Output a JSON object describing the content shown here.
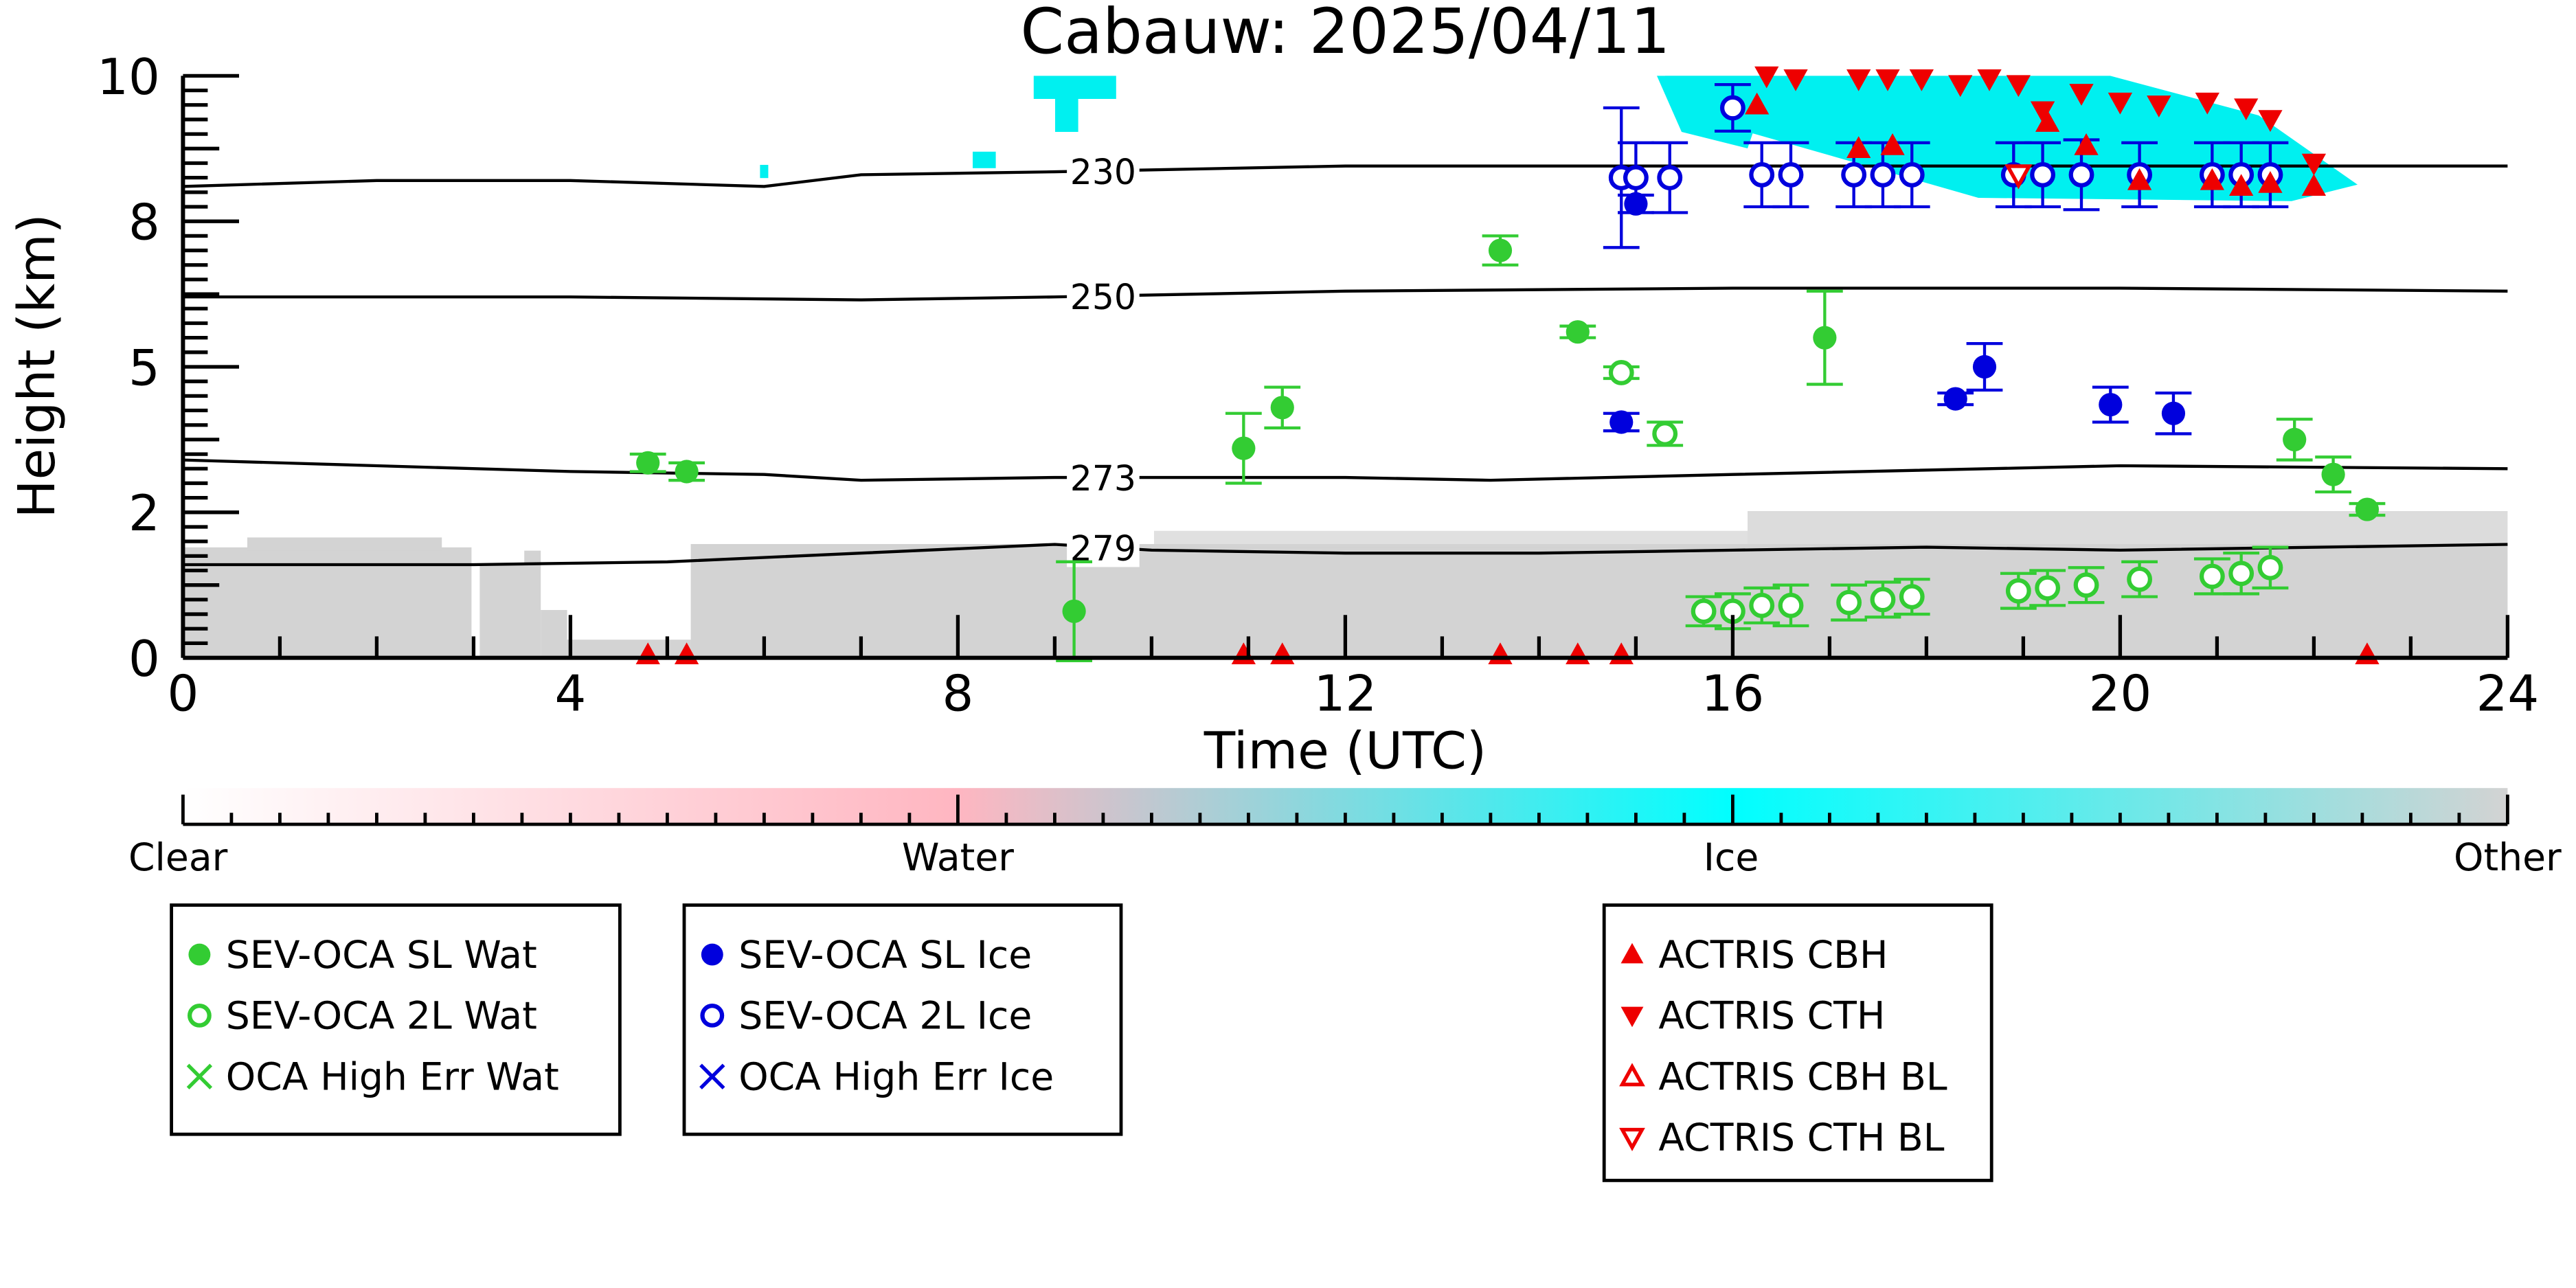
{
  "chart_data": {
    "type": "scatter",
    "title": "Cabauw: 2025/04/11",
    "xlabel": "Time (UTC)",
    "ylabel": "Height (km)",
    "xlim": [
      0,
      24
    ],
    "ylim": [
      0,
      10
    ],
    "x_ticks": [
      0,
      4,
      8,
      12,
      16,
      20,
      24
    ],
    "x_tick_labels": [
      "0",
      "4",
      "8",
      "12",
      "16",
      "20",
      "24"
    ],
    "y_ticks": [
      0,
      2.5,
      5,
      7.5,
      10
    ],
    "y_tick_labels": [
      "0",
      "2",
      "5",
      "8",
      "10"
    ],
    "temperature_contours": [
      {
        "label": "230",
        "points": [
          [
            0,
            8.1
          ],
          [
            2,
            8.2
          ],
          [
            4,
            8.2
          ],
          [
            6,
            8.1
          ],
          [
            7,
            8.3
          ],
          [
            9,
            8.35
          ],
          [
            12,
            8.45
          ],
          [
            16,
            8.45
          ],
          [
            20,
            8.45
          ],
          [
            24,
            8.45
          ]
        ]
      },
      {
        "label": "250",
        "points": [
          [
            0,
            6.2
          ],
          [
            4,
            6.2
          ],
          [
            7,
            6.15
          ],
          [
            9,
            6.2
          ],
          [
            12,
            6.3
          ],
          [
            16,
            6.35
          ],
          [
            20,
            6.35
          ],
          [
            24,
            6.3
          ]
        ]
      },
      {
        "label": "273",
        "points": [
          [
            0,
            3.4
          ],
          [
            2,
            3.3
          ],
          [
            4,
            3.2
          ],
          [
            6,
            3.15
          ],
          [
            7,
            3.05
          ],
          [
            9,
            3.1
          ],
          [
            12,
            3.1
          ],
          [
            13.5,
            3.05
          ],
          [
            16,
            3.15
          ],
          [
            20,
            3.3
          ],
          [
            24,
            3.25
          ]
        ]
      },
      {
        "label": "279",
        "points": [
          [
            0,
            1.6
          ],
          [
            3,
            1.6
          ],
          [
            5,
            1.65
          ],
          [
            7,
            1.8
          ],
          [
            9,
            1.95
          ],
          [
            10,
            1.85
          ],
          [
            12,
            1.8
          ],
          [
            14,
            1.8
          ],
          [
            16,
            1.85
          ],
          [
            18,
            1.9
          ],
          [
            20,
            1.85
          ],
          [
            24,
            1.95
          ]
        ]
      }
    ],
    "series": [
      {
        "name": "SEV-OCA SL Wat",
        "marker": "filled-circle",
        "color": "#33cc33",
        "points": [
          [
            4.8,
            3.35,
            0.15
          ],
          [
            5.2,
            3.2,
            0.15
          ],
          [
            9.2,
            0.8,
            0.85
          ],
          [
            10.95,
            3.6,
            0.6
          ],
          [
            11.35,
            4.3,
            0.35
          ],
          [
            13.6,
            7.0,
            0.25
          ],
          [
            14.4,
            5.6,
            0.1
          ],
          [
            16.95,
            5.5,
            0.8
          ],
          [
            21.8,
            3.75,
            0.35
          ],
          [
            22.2,
            3.15,
            0.3
          ],
          [
            22.55,
            2.55,
            0.1
          ]
        ]
      },
      {
        "name": "SEV-OCA 2L Wat",
        "marker": "open-circle",
        "color": "#33cc33",
        "points": [
          [
            14.85,
            4.9,
            0.1
          ],
          [
            15.3,
            3.85,
            0.2
          ],
          [
            15.7,
            0.8,
            0.25
          ],
          [
            16.0,
            0.8,
            0.3
          ],
          [
            16.3,
            0.9,
            0.3
          ],
          [
            16.6,
            0.9,
            0.35
          ],
          [
            17.2,
            0.95,
            0.3
          ],
          [
            17.55,
            1.0,
            0.3
          ],
          [
            17.85,
            1.05,
            0.3
          ],
          [
            18.95,
            1.15,
            0.3
          ],
          [
            19.25,
            1.2,
            0.3
          ],
          [
            19.65,
            1.25,
            0.3
          ],
          [
            20.2,
            1.35,
            0.3
          ],
          [
            20.95,
            1.4,
            0.3
          ],
          [
            21.25,
            1.45,
            0.35
          ],
          [
            21.55,
            1.55,
            0.35
          ]
        ]
      },
      {
        "name": "OCA High Err Wat",
        "marker": "x",
        "color": "#33cc33",
        "points": []
      },
      {
        "name": "SEV-OCA SL Ice",
        "marker": "filled-circle",
        "color": "#0000dd",
        "points": [
          [
            14.85,
            4.05,
            0.15
          ],
          [
            15.0,
            7.8,
            0.15
          ],
          [
            18.3,
            4.45,
            0.1
          ],
          [
            18.6,
            5.0,
            0.4
          ],
          [
            19.9,
            4.35,
            0.3
          ],
          [
            20.55,
            4.2,
            0.35
          ]
        ]
      },
      {
        "name": "SEV-OCA 2L Ice",
        "marker": "open-circle",
        "color": "#0000dd",
        "points": [
          [
            14.85,
            8.25,
            1.2
          ],
          [
            15.0,
            8.25,
            0.6
          ],
          [
            15.35,
            8.25,
            0.6
          ],
          [
            16.0,
            9.45,
            0.4
          ],
          [
            16.3,
            8.3,
            0.55
          ],
          [
            16.6,
            8.3,
            0.55
          ],
          [
            17.25,
            8.3,
            0.55
          ],
          [
            17.55,
            8.3,
            0.55
          ],
          [
            17.85,
            8.3,
            0.55
          ],
          [
            18.9,
            8.3,
            0.55
          ],
          [
            19.2,
            8.3,
            0.55
          ],
          [
            19.6,
            8.3,
            0.6
          ],
          [
            20.2,
            8.3,
            0.55
          ],
          [
            20.95,
            8.3,
            0.55
          ],
          [
            21.25,
            8.3,
            0.55
          ],
          [
            21.55,
            8.3,
            0.55
          ]
        ]
      },
      {
        "name": "OCA High Err Ice",
        "marker": "x",
        "color": "#0000dd",
        "points": []
      },
      {
        "name": "ACTRIS CBH",
        "marker": "filled-triangle-up",
        "color": "#ee0000",
        "points": [
          [
            4.8,
            0.05
          ],
          [
            5.2,
            0.05
          ],
          [
            10.95,
            0.05
          ],
          [
            11.35,
            0.05
          ],
          [
            13.6,
            0.05
          ],
          [
            14.4,
            0.05
          ],
          [
            14.85,
            0.05
          ],
          [
            22.55,
            0.05
          ],
          [
            16.25,
            9.5
          ],
          [
            17.3,
            8.75
          ],
          [
            17.65,
            8.8
          ],
          [
            19.65,
            8.8
          ],
          [
            19.25,
            9.2
          ],
          [
            20.2,
            8.2
          ],
          [
            20.95,
            8.2
          ],
          [
            21.25,
            8.1
          ],
          [
            21.55,
            8.15
          ],
          [
            22.0,
            8.1
          ]
        ]
      },
      {
        "name": "ACTRIS CTH",
        "marker": "filled-triangle-down",
        "color": "#ee0000",
        "points": [
          [
            16.35,
            10.0
          ],
          [
            16.65,
            9.95
          ],
          [
            17.3,
            9.95
          ],
          [
            17.6,
            9.95
          ],
          [
            17.95,
            9.95
          ],
          [
            18.35,
            9.85
          ],
          [
            18.65,
            9.95
          ],
          [
            18.95,
            9.85
          ],
          [
            19.6,
            9.7
          ],
          [
            20.0,
            9.55
          ],
          [
            20.4,
            9.5
          ],
          [
            20.9,
            9.55
          ],
          [
            21.3,
            9.45
          ],
          [
            21.55,
            9.25
          ],
          [
            19.2,
            9.4
          ],
          [
            22.0,
            8.5
          ]
        ]
      },
      {
        "name": "ACTRIS CBH BL",
        "marker": "open-triangle-up",
        "color": "#ee0000",
        "points": []
      },
      {
        "name": "ACTRIS CTH BL",
        "marker": "open-triangle-down",
        "color": "#ee0000",
        "points": [
          [
            18.95,
            8.3
          ]
        ]
      }
    ],
    "colorbar": {
      "labels": [
        "Clear",
        "Water",
        "Ice",
        "Other"
      ],
      "colors": [
        "#ffffff",
        "#ffb6c1",
        "#00ffff",
        "#d3d3d3"
      ]
    },
    "legends": [
      {
        "entries": [
          {
            "label": "SEV-OCA SL Wat",
            "marker": "filled-circle",
            "color": "#33cc33"
          },
          {
            "label": "SEV-OCA 2L Wat",
            "marker": "open-circle",
            "color": "#33cc33"
          },
          {
            "label": "OCA High Err Wat",
            "marker": "x",
            "color": "#33cc33"
          }
        ]
      },
      {
        "entries": [
          {
            "label": "SEV-OCA SL Ice",
            "marker": "filled-circle",
            "color": "#0000dd"
          },
          {
            "label": "SEV-OCA 2L Ice",
            "marker": "open-circle",
            "color": "#0000dd"
          },
          {
            "label": "OCA High Err Ice",
            "marker": "x",
            "color": "#0000dd"
          }
        ]
      },
      {
        "entries": [
          {
            "label": "ACTRIS CBH",
            "marker": "filled-triangle-up",
            "color": "#ee0000"
          },
          {
            "label": "ACTRIS CTH",
            "marker": "filled-triangle-down",
            "color": "#ee0000"
          },
          {
            "label": "ACTRIS CBH BL",
            "marker": "open-triangle-up",
            "color": "#ee0000"
          },
          {
            "label": "ACTRIS CTH BL",
            "marker": "open-triangle-down",
            "color": "#ee0000"
          }
        ]
      }
    ]
  }
}
